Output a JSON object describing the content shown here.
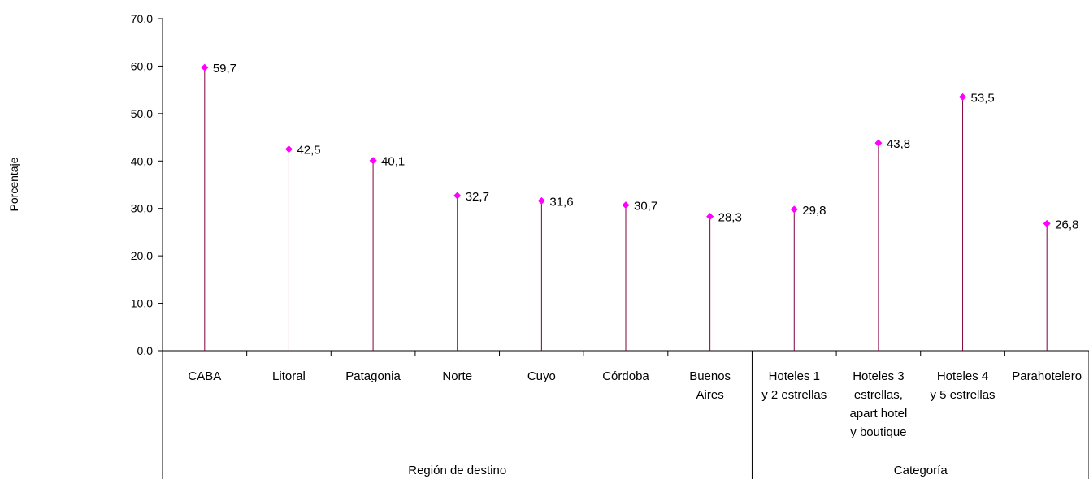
{
  "chart_data": {
    "type": "line",
    "subtype": "stem",
    "ylabel": "Porcentaje",
    "ylim": [
      0,
      70
    ],
    "yticks": [
      0,
      10,
      20,
      30,
      40,
      50,
      60,
      70
    ],
    "ytick_labels": [
      "0,0",
      "10,0",
      "20,0",
      "30,0",
      "40,0",
      "50,0",
      "60,0",
      "70,0"
    ],
    "categories": [
      [
        "CABA"
      ],
      [
        "Litoral"
      ],
      [
        "Patagonia"
      ],
      [
        "Norte"
      ],
      [
        "Cuyo"
      ],
      [
        "Córdoba"
      ],
      [
        "Buenos",
        "Aires"
      ],
      [
        "Hoteles 1",
        "y 2 estrellas"
      ],
      [
        "Hoteles 3",
        "estrellas,",
        "apart hotel",
        "y boutique"
      ],
      [
        "Hoteles 4",
        "y 5 estrellas"
      ],
      [
        "Parahotelero"
      ]
    ],
    "groups": [
      {
        "label": "Región de destino",
        "count": 7
      },
      {
        "label": "Categoría",
        "count": 4
      }
    ],
    "values": [
      59.7,
      42.5,
      40.1,
      32.7,
      31.6,
      30.7,
      28.3,
      29.8,
      43.8,
      53.5,
      26.8
    ],
    "value_labels": [
      "59,7",
      "42,5",
      "40,1",
      "32,7",
      "31,6",
      "30,7",
      "28,3",
      "29,8",
      "43,8",
      "53,5",
      "26,8"
    ],
    "grid": false,
    "legend": "none",
    "colors": {
      "stem": "#800040",
      "marker": "#ff00ff",
      "axis": "#000000"
    }
  }
}
